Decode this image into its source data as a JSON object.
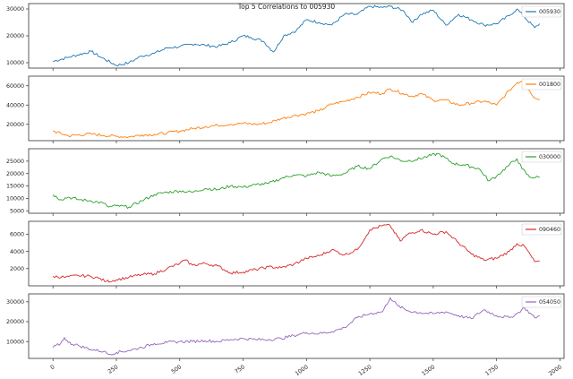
{
  "figure": {
    "title": "Top 5 Correlations to 005930"
  },
  "chart_data": [
    {
      "type": "line",
      "series": [
        {
          "name": "005930",
          "color": "#1f77b4"
        }
      ],
      "x": [
        0,
        60,
        150,
        190,
        250,
        300,
        350,
        400,
        450,
        500,
        560,
        600,
        650,
        700,
        750,
        780,
        830,
        870,
        910,
        960,
        1000,
        1050,
        1100,
        1150,
        1200,
        1250,
        1300,
        1330,
        1380,
        1420,
        1450,
        1500,
        1550,
        1600,
        1650,
        1700,
        1750,
        1800,
        1830,
        1860,
        1900,
        1920
      ],
      "values": [
        10500,
        12000,
        14200,
        12000,
        9000,
        10000,
        12500,
        13500,
        15500,
        16000,
        17000,
        16500,
        16000,
        17500,
        20000,
        19500,
        18000,
        14000,
        20000,
        22000,
        26000,
        25000,
        24000,
        28000,
        28000,
        31000,
        30500,
        31000,
        29500,
        25000,
        28000,
        29500,
        24000,
        28000,
        26000,
        24000,
        24500,
        27500,
        30000,
        27000,
        23000,
        24500
      ],
      "ylim": [
        8000,
        32000
      ],
      "yticks": [
        10000,
        20000,
        30000
      ],
      "xlim": [
        -96,
        2016
      ],
      "legend": "upper right",
      "grid": false
    },
    {
      "type": "line",
      "series": [
        {
          "name": "001800",
          "color": "#ff7f0e"
        }
      ],
      "x": [
        0,
        60,
        150,
        200,
        250,
        300,
        350,
        400,
        450,
        500,
        550,
        600,
        650,
        700,
        750,
        800,
        850,
        900,
        950,
        1000,
        1050,
        1100,
        1150,
        1200,
        1250,
        1300,
        1330,
        1380,
        1420,
        1450,
        1500,
        1550,
        1600,
        1650,
        1700,
        1750,
        1800,
        1830,
        1850,
        1880,
        1900,
        1920
      ],
      "values": [
        13000,
        8000,
        10000,
        8500,
        7500,
        7000,
        9000,
        9500,
        11000,
        13000,
        15500,
        17500,
        19000,
        20000,
        21000,
        20000,
        21500,
        26000,
        29000,
        31000,
        34000,
        41000,
        44000,
        48000,
        53000,
        52000,
        57000,
        52000,
        49000,
        52000,
        45000,
        45000,
        40000,
        42000,
        44000,
        40000,
        55000,
        63000,
        65000,
        55000,
        47000,
        46000
      ],
      "ylim": [
        3000,
        70000
      ],
      "yticks": [
        20000,
        40000,
        60000
      ],
      "xlim": [
        -96,
        2016
      ],
      "legend": "upper right",
      "grid": false
    },
    {
      "type": "line",
      "series": [
        {
          "name": "030000",
          "color": "#2ca02c"
        }
      ],
      "x": [
        0,
        30,
        60,
        100,
        150,
        200,
        220,
        250,
        300,
        350,
        400,
        450,
        500,
        550,
        600,
        650,
        700,
        750,
        800,
        850,
        900,
        950,
        1000,
        1050,
        1100,
        1150,
        1200,
        1250,
        1300,
        1330,
        1380,
        1430,
        1480,
        1520,
        1580,
        1620,
        1680,
        1720,
        1750,
        1800,
        1830,
        1850,
        1880,
        1920
      ],
      "values": [
        11500,
        9500,
        10500,
        9500,
        9000,
        8000,
        6500,
        7000,
        6500,
        9000,
        11500,
        12500,
        13000,
        12500,
        14000,
        13500,
        15000,
        14500,
        15500,
        16000,
        18000,
        19500,
        19000,
        20500,
        19000,
        20000,
        23000,
        22000,
        26000,
        27000,
        25000,
        25500,
        27000,
        28000,
        24000,
        23500,
        22000,
        17000,
        19000,
        23500,
        26000,
        22000,
        18500,
        18500
      ],
      "ylim": [
        4000,
        30000
      ],
      "yticks": [
        5000,
        10000,
        15000,
        20000,
        25000
      ],
      "xlim": [
        -96,
        2016
      ],
      "legend": "upper right",
      "grid": false
    },
    {
      "type": "line",
      "series": [
        {
          "name": "090460",
          "color": "#d62728"
        }
      ],
      "x": [
        0,
        50,
        100,
        150,
        180,
        210,
        250,
        300,
        350,
        400,
        450,
        500,
        520,
        550,
        600,
        650,
        700,
        750,
        800,
        850,
        900,
        950,
        1000,
        1050,
        1100,
        1150,
        1200,
        1250,
        1300,
        1330,
        1370,
        1400,
        1450,
        1500,
        1550,
        1600,
        1650,
        1700,
        1750,
        1800,
        1830,
        1860,
        1900,
        1920
      ],
      "values": [
        1100,
        1000,
        1200,
        1100,
        900,
        500,
        700,
        1000,
        1300,
        1400,
        2000,
        2600,
        3000,
        2400,
        2600,
        2300,
        1500,
        1600,
        1900,
        2200,
        2100,
        2500,
        3200,
        3500,
        4200,
        3600,
        4200,
        6500,
        7000,
        7000,
        5200,
        6000,
        6500,
        6000,
        6300,
        5000,
        3700,
        3000,
        3200,
        4000,
        4900,
        4600,
        2800,
        2900
      ],
      "ylim": [
        0,
        7500
      ],
      "yticks": [
        2000,
        4000,
        6000
      ],
      "xlim": [
        -96,
        2016
      ],
      "legend": "upper right",
      "grid": false
    },
    {
      "type": "line",
      "series": [
        {
          "name": "054050",
          "color": "#9467bd"
        }
      ],
      "x": [
        0,
        30,
        45,
        60,
        100,
        150,
        200,
        220,
        250,
        300,
        350,
        400,
        450,
        500,
        550,
        600,
        650,
        700,
        750,
        800,
        850,
        900,
        950,
        1000,
        1050,
        1100,
        1150,
        1200,
        1250,
        1300,
        1330,
        1360,
        1400,
        1450,
        1500,
        1550,
        1600,
        1650,
        1700,
        1750,
        1800,
        1830,
        1860,
        1900,
        1920
      ],
      "values": [
        7000,
        9000,
        12000,
        9500,
        8000,
        6000,
        5000,
        3500,
        4500,
        5500,
        7000,
        9000,
        9500,
        10000,
        10000,
        10500,
        10000,
        11000,
        11500,
        11000,
        11000,
        11500,
        13000,
        14500,
        14000,
        15000,
        17000,
        22000,
        24000,
        25000,
        32000,
        28000,
        25500,
        24500,
        24000,
        25000,
        23000,
        21500,
        26000,
        23000,
        22000,
        24000,
        27000,
        22000,
        23000
      ],
      "ylim": [
        1500,
        34000
      ],
      "yticks": [
        10000,
        20000,
        30000
      ],
      "xlim": [
        -96,
        2016
      ],
      "legend": "upper right",
      "grid": false
    }
  ],
  "x_axis": {
    "ticks": [
      0,
      250,
      500,
      750,
      1000,
      1250,
      1500,
      1750,
      2000
    ]
  }
}
